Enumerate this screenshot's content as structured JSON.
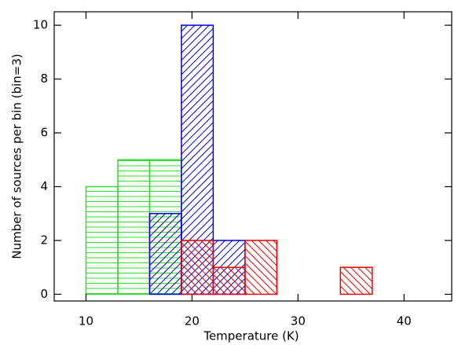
{
  "chart_data": {
    "type": "histogram",
    "x_label": "Temperature (K)",
    "y_label": "Number of sources per bin (bin=3)",
    "xlim": [
      7,
      44.5
    ],
    "ylim": [
      -0.25,
      10.5
    ],
    "xticks": [
      10,
      20,
      30,
      40
    ],
    "yticks": [
      0,
      2,
      4,
      6,
      8,
      10
    ],
    "series": [
      {
        "color": "#33dd33",
        "hatch": "horizontal",
        "bins": [
          10,
          13,
          16,
          19
        ],
        "counts": [
          4,
          5,
          5
        ]
      },
      {
        "color": "#0000dd",
        "hatch": "forward",
        "bins": [
          16,
          19,
          22,
          25,
          28,
          31,
          34,
          37,
          40,
          43
        ],
        "counts": [
          3,
          10,
          2,
          0,
          0,
          0,
          0,
          0,
          0
        ]
      },
      {
        "color": "#ee0000",
        "hatch": "back",
        "bins": [
          19,
          22,
          25,
          28,
          31,
          34,
          37
        ],
        "counts": [
          2,
          1,
          2,
          0,
          0,
          1
        ]
      }
    ]
  }
}
